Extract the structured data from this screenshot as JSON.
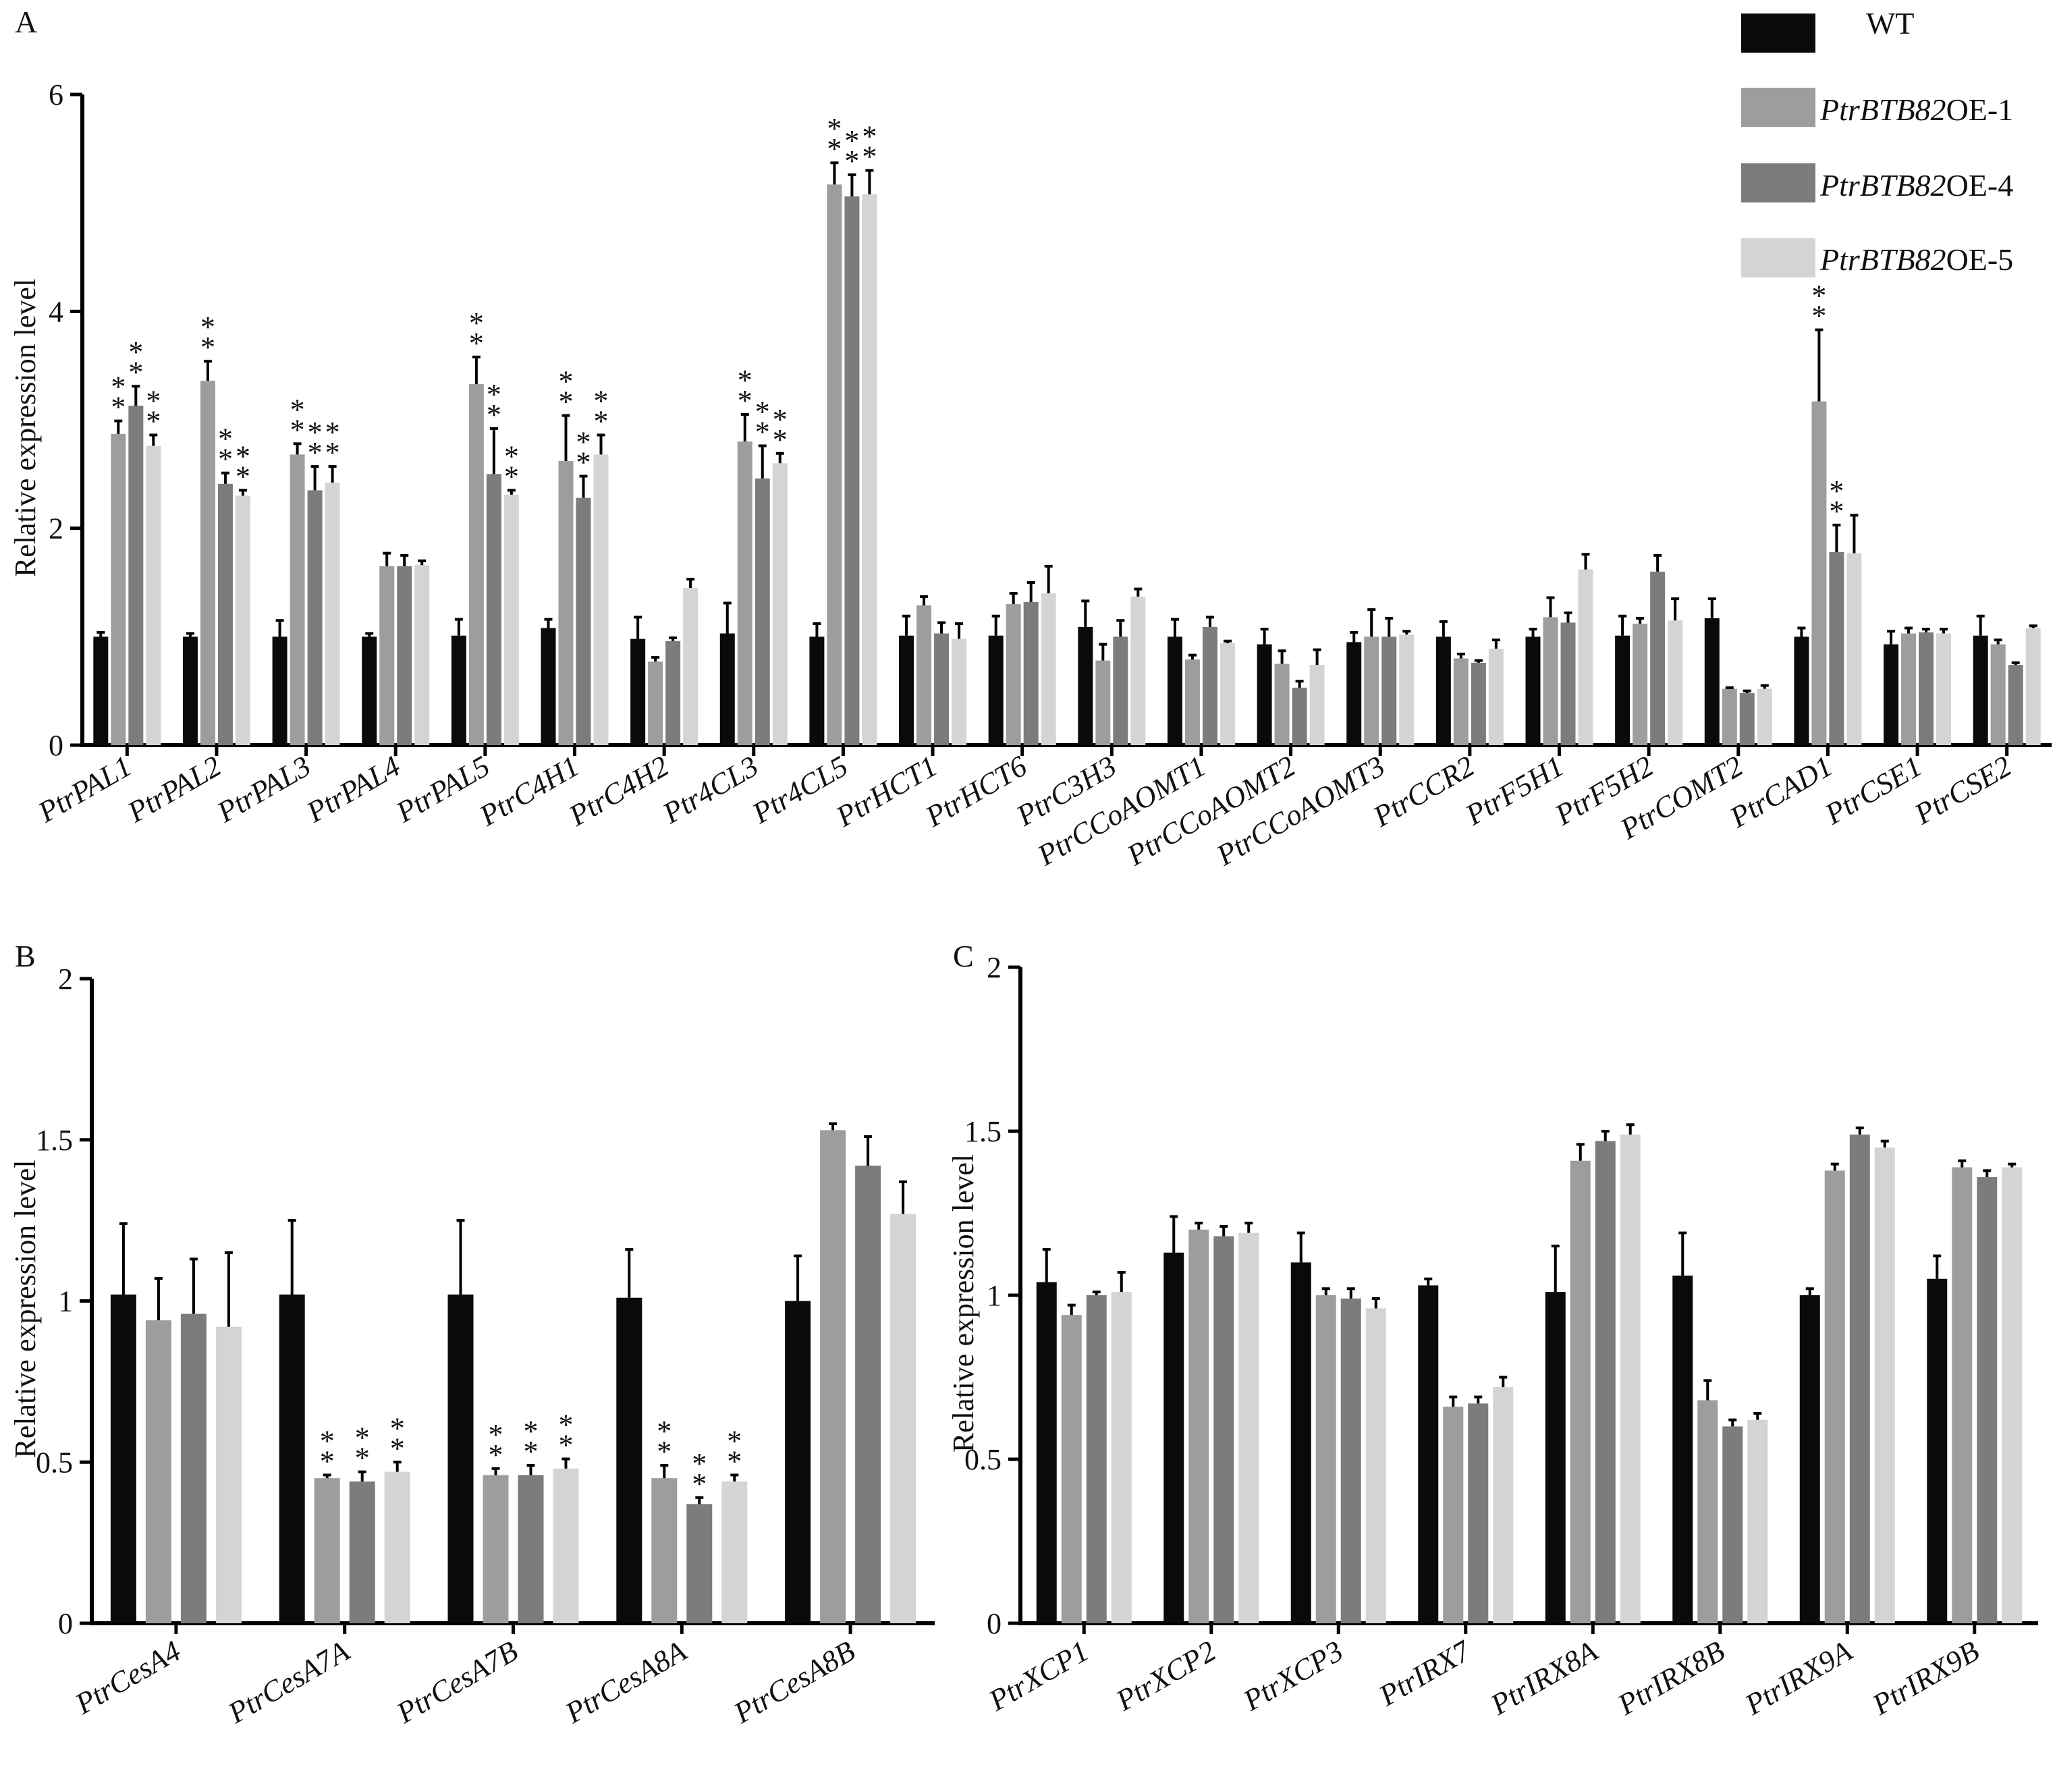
{
  "colors": {
    "WT": "#0a0a0a",
    "PtrBTB82OE-1": "#9d9d9f",
    "PtrBTB82OE-4": "#7c7c7c",
    "PtrBTB82OE-5": "#d4d4d4"
  },
  "legend": [
    {
      "series": "WT",
      "gene": "",
      "suffix": "WT"
    },
    {
      "series": "PtrBTB82OE-1",
      "gene": "PtrBTB82",
      "suffix": "OE-1"
    },
    {
      "series": "PtrBTB82OE-4",
      "gene": "PtrBTB82",
      "suffix": "OE-4"
    },
    {
      "series": "PtrBTB82OE-5",
      "gene": "PtrBTB82",
      "suffix": "OE-5"
    }
  ],
  "chart_data": [
    {
      "panel": "A",
      "type": "bar",
      "ylabel": "Relative expression level",
      "ylim": [
        0,
        6
      ],
      "yticks": [
        "0",
        "2",
        "4",
        "6"
      ],
      "series_names": [
        "WT",
        "PtrBTB82OE-1",
        "PtrBTB82OE-4",
        "PtrBTB82OE-5"
      ],
      "categories": [
        "PtrPAL1",
        "PtrPAL2",
        "PtrPAL3",
        "PtrPAL4",
        "PtrPAL5",
        "PtrC4H1",
        "PtrC4H2",
        "Ptr4CL3",
        "Ptr4CL5",
        "PtrHCT1",
        "PtrHCT6",
        "PtrC3H3",
        "PtrCCoAOMT1",
        "PtrCCoAOMT2",
        "PtrCCoAOMT3",
        "PtrCCR2",
        "PtrF5H1",
        "PtrF5H2",
        "PtrCOMT2",
        "PtrCAD1",
        "PtrCSE1",
        "PtrCSE2"
      ],
      "values": [
        [
          1.0,
          2.87,
          3.13,
          2.76
        ],
        [
          1.0,
          3.36,
          2.41,
          2.3
        ],
        [
          1.0,
          2.68,
          2.35,
          2.42
        ],
        [
          1.0,
          1.65,
          1.65,
          1.66
        ],
        [
          1.01,
          3.33,
          2.5,
          2.31
        ],
        [
          1.08,
          2.62,
          2.28,
          2.68
        ],
        [
          0.98,
          0.77,
          0.96,
          1.45
        ],
        [
          1.03,
          2.8,
          2.46,
          2.6
        ],
        [
          1.0,
          5.17,
          5.06,
          5.08
        ],
        [
          1.01,
          1.29,
          1.03,
          0.98
        ],
        [
          1.01,
          1.3,
          1.32,
          1.4
        ],
        [
          1.09,
          0.78,
          1.0,
          1.37
        ],
        [
          1.0,
          0.79,
          1.09,
          0.94
        ],
        [
          0.93,
          0.75,
          0.53,
          0.74
        ],
        [
          0.95,
          1.0,
          1.0,
          1.02
        ],
        [
          1.0,
          0.8,
          0.76,
          0.89
        ],
        [
          1.0,
          1.18,
          1.13,
          1.62
        ],
        [
          1.01,
          1.12,
          1.6,
          1.15
        ],
        [
          1.17,
          0.52,
          0.48,
          0.52
        ],
        [
          1.0,
          3.17,
          1.78,
          1.77
        ],
        [
          0.93,
          1.03,
          1.04,
          1.03
        ],
        [
          1.01,
          0.93,
          0.74,
          1.08
        ]
      ],
      "errors": [
        [
          0.04,
          0.12,
          0.18,
          0.1
        ],
        [
          0.03,
          0.18,
          0.1,
          0.05
        ],
        [
          0.15,
          0.1,
          0.22,
          0.15
        ],
        [
          0.03,
          0.12,
          0.1,
          0.04
        ],
        [
          0.15,
          0.25,
          0.42,
          0.04
        ],
        [
          0.08,
          0.42,
          0.2,
          0.18
        ],
        [
          0.2,
          0.04,
          0.03,
          0.08
        ],
        [
          0.28,
          0.25,
          0.3,
          0.09
        ],
        [
          0.12,
          0.2,
          0.2,
          0.22
        ],
        [
          0.18,
          0.08,
          0.1,
          0.14
        ],
        [
          0.18,
          0.1,
          0.18,
          0.25
        ],
        [
          0.24,
          0.15,
          0.15,
          0.07
        ],
        [
          0.16,
          0.04,
          0.09,
          0.02
        ],
        [
          0.14,
          0.12,
          0.06,
          0.14
        ],
        [
          0.09,
          0.25,
          0.17,
          0.03
        ],
        [
          0.14,
          0.04,
          0.02,
          0.08
        ],
        [
          0.07,
          0.18,
          0.09,
          0.14
        ],
        [
          0.18,
          0.05,
          0.15,
          0.2
        ],
        [
          0.18,
          0.01,
          0.02,
          0.03
        ],
        [
          0.08,
          0.66,
          0.25,
          0.35
        ],
        [
          0.12,
          0.05,
          0.03,
          0.04
        ],
        [
          0.18,
          0.04,
          0.02,
          0.02
        ]
      ],
      "significance": [
        [
          "",
          "**",
          "**",
          "**"
        ],
        [
          "",
          "**",
          "**",
          "**"
        ],
        [
          "",
          "**",
          "**",
          "**"
        ],
        [
          "",
          "",
          "",
          ""
        ],
        [
          "",
          "**",
          "**",
          "**"
        ],
        [
          "",
          "**",
          "**",
          "**"
        ],
        [
          "",
          "",
          "",
          ""
        ],
        [
          "",
          "**",
          "**",
          "**"
        ],
        [
          "",
          "**",
          "**",
          "**"
        ],
        [
          "",
          "",
          "",
          ""
        ],
        [
          "",
          "",
          "",
          ""
        ],
        [
          "",
          "",
          "",
          ""
        ],
        [
          "",
          "",
          "",
          ""
        ],
        [
          "",
          "",
          "",
          ""
        ],
        [
          "",
          "",
          "",
          ""
        ],
        [
          "",
          "",
          "",
          ""
        ],
        [
          "",
          "",
          "",
          ""
        ],
        [
          "",
          "",
          "",
          ""
        ],
        [
          "",
          "",
          "",
          ""
        ],
        [
          "",
          "**",
          "**",
          ""
        ],
        [
          "",
          "",
          "",
          ""
        ],
        [
          "",
          "",
          "",
          ""
        ]
      ]
    },
    {
      "panel": "B",
      "type": "bar",
      "ylabel": "Relative expression level",
      "ylim": [
        0,
        2
      ],
      "yticks": [
        "0",
        "0.5",
        "1",
        "1.5",
        "2"
      ],
      "series_names": [
        "WT",
        "PtrBTB82OE-1",
        "PtrBTB82OE-4",
        "PtrBTB82OE-5"
      ],
      "categories": [
        "PtrCesA4",
        "PtrCesA7A",
        "PtrCesA7B",
        "PtrCesA8A",
        "PtrCesA8B"
      ],
      "values": [
        [
          1.02,
          0.94,
          0.96,
          0.92
        ],
        [
          1.02,
          0.45,
          0.44,
          0.47
        ],
        [
          1.02,
          0.46,
          0.46,
          0.48
        ],
        [
          1.01,
          0.45,
          0.37,
          0.44
        ],
        [
          1.0,
          1.53,
          1.42,
          1.27
        ]
      ],
      "errors": [
        [
          0.22,
          0.13,
          0.17,
          0.23
        ],
        [
          0.23,
          0.01,
          0.03,
          0.03
        ],
        [
          0.23,
          0.02,
          0.03,
          0.03
        ],
        [
          0.15,
          0.04,
          0.02,
          0.02
        ],
        [
          0.14,
          0.02,
          0.09,
          0.1
        ]
      ],
      "significance": [
        [
          "",
          "",
          "",
          ""
        ],
        [
          "",
          "**",
          "**",
          "**"
        ],
        [
          "",
          "**",
          "**",
          "**"
        ],
        [
          "",
          "**",
          "**",
          "**"
        ],
        [
          "",
          "",
          "",
          ""
        ]
      ]
    },
    {
      "panel": "C",
      "type": "bar",
      "ylabel": "Relative expression level",
      "ylim": [
        0,
        2
      ],
      "yticks": [
        "0",
        "0.5",
        "1",
        "1.5",
        "2"
      ],
      "series_names": [
        "WT",
        "PtrBTB82OE-1",
        "PtrBTB82OE-4",
        "PtrBTB82OE-5"
      ],
      "categories": [
        "PtrXCP1",
        "PtrXCP2",
        "PtrXCP3",
        "PtrIRX7",
        "PtrIRX8A",
        "PtrIRX8B",
        "PtrIRX9A",
        "PtrIRX9B"
      ],
      "values": [
        [
          1.04,
          0.94,
          1.0,
          1.01
        ],
        [
          1.13,
          1.2,
          1.18,
          1.19
        ],
        [
          1.1,
          1.0,
          0.99,
          0.96
        ],
        [
          1.03,
          0.66,
          0.67,
          0.72
        ],
        [
          1.01,
          1.41,
          1.47,
          1.49
        ],
        [
          1.06,
          0.68,
          0.6,
          0.62
        ],
        [
          1.0,
          1.38,
          1.49,
          1.45
        ],
        [
          1.05,
          1.39,
          1.36,
          1.39
        ]
      ],
      "errors": [
        [
          0.1,
          0.03,
          0.01,
          0.06
        ],
        [
          0.11,
          0.02,
          0.03,
          0.03
        ],
        [
          0.09,
          0.02,
          0.03,
          0.03
        ],
        [
          0.02,
          0.03,
          0.02,
          0.03
        ],
        [
          0.14,
          0.05,
          0.03,
          0.03
        ],
        [
          0.13,
          0.06,
          0.02,
          0.02
        ],
        [
          0.02,
          0.02,
          0.02,
          0.02
        ],
        [
          0.07,
          0.02,
          0.02,
          0.01
        ]
      ],
      "significance": [
        [
          "",
          "",
          "",
          ""
        ],
        [
          "",
          "",
          "",
          ""
        ],
        [
          "",
          "",
          "",
          ""
        ],
        [
          "",
          "",
          "",
          ""
        ],
        [
          "",
          "",
          "",
          ""
        ],
        [
          "",
          "",
          "",
          ""
        ],
        [
          "",
          "",
          "",
          ""
        ],
        [
          "",
          "",
          "",
          ""
        ]
      ]
    }
  ]
}
